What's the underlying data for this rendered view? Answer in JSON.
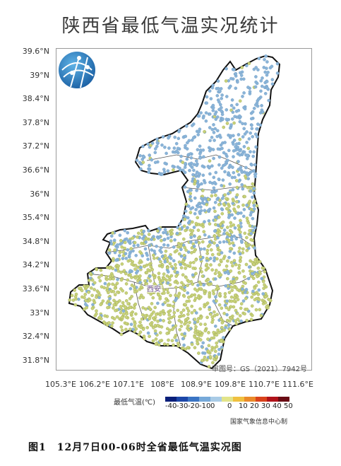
{
  "title": "陕西省最低气温实况统计",
  "latitudes": [
    "39.6°N",
    "39°N",
    "38.4°N",
    "37.8°N",
    "37.2°N",
    "36.6°N",
    "36°N",
    "35.4°N",
    "34.8°N",
    "34.2°N",
    "33.6°N",
    "33°N",
    "32.4°N",
    "31.8°N"
  ],
  "longitudes": [
    "105.3°E",
    "106.2°E",
    "107.1°E",
    "108°E",
    "108.9°E",
    "109.8°E",
    "110.7°E",
    "111.6°E"
  ],
  "city_label": "西安",
  "review_number": "审图号：GS（2021）7942号",
  "legend": {
    "title": "最低气温(℃)",
    "colors": [
      "#0a1f7a",
      "#1c46a8",
      "#3a74c4",
      "#76a9d9",
      "#a9cbe6",
      "#e2e489",
      "#f0c040",
      "#ea8a2a",
      "#d9431c",
      "#b0131a",
      "#6a0c14"
    ],
    "ticks": [
      "-40",
      "-30",
      "-20",
      "-10",
      "0",
      "0",
      "10",
      "20",
      "30",
      "40",
      "50"
    ]
  },
  "credit": "国家气象信息中心制",
  "caption": "图1　12月7日00-06时全省最低气温实况图",
  "logo_icon": "globe-network-icon",
  "colors": {
    "cold": "#8ab4d8",
    "mild": "#c8d27a"
  }
}
